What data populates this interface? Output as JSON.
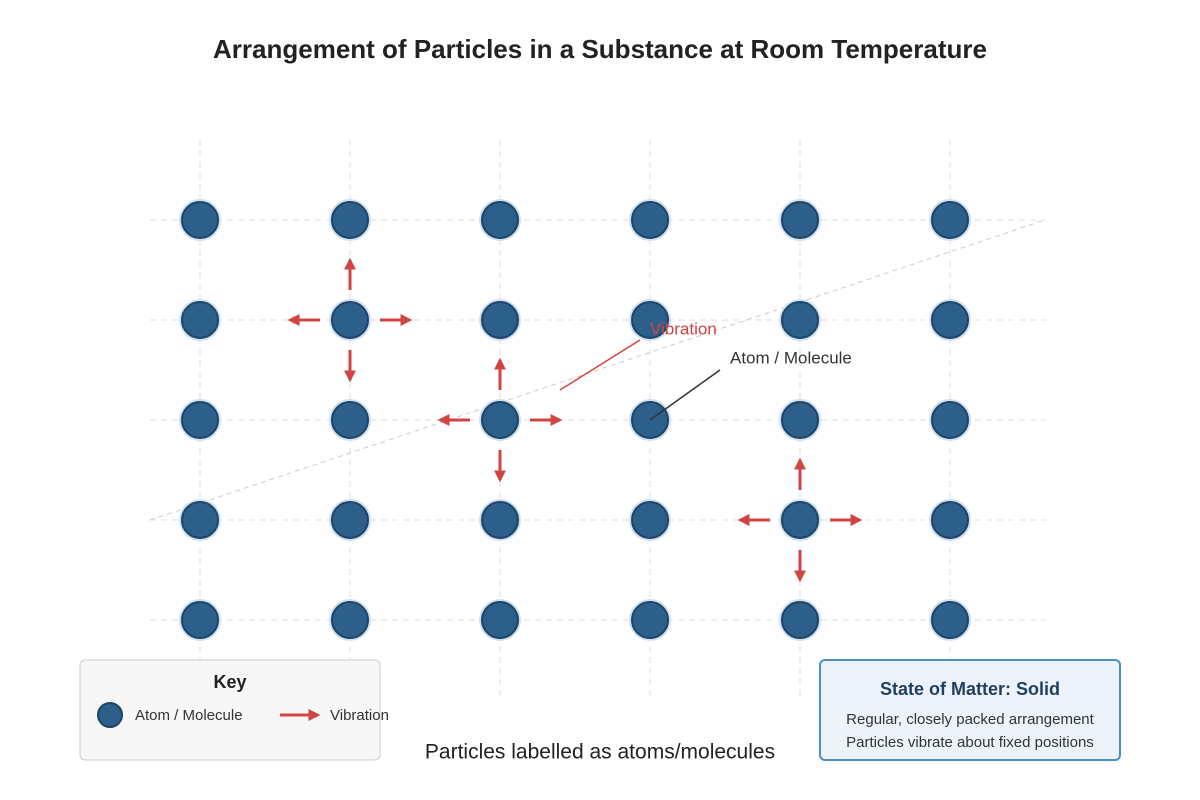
{
  "title": "Arrangement of Particles in a Substance at Room Temperature",
  "annotations": {
    "vibration": "Vibration",
    "particle": "Atom / Molecule"
  },
  "key": {
    "title": "Key",
    "items": [
      "Atom / Molecule",
      "Vibration"
    ]
  },
  "info_box": {
    "title": "State of Matter: Solid",
    "lines": [
      "Regular, closely packed arrangement",
      "Particles vibrate about fixed positions"
    ]
  },
  "caption": "Particles labelled as atoms/molecules"
}
